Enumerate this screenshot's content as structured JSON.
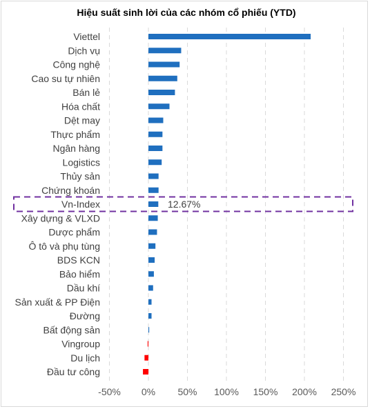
{
  "chart_data": {
    "type": "bar",
    "orientation": "horizontal",
    "title": "Hiệu suất sinh lời của các nhóm cổ phiếu (YTD)",
    "categories": [
      "Viettel",
      "Dịch vụ",
      "Công nghệ",
      "Cao su tự nhiên",
      "Bán lẻ",
      "Hóa chất",
      "Dệt may",
      "Thực phẩm",
      "Ngân hàng",
      "Logistics",
      "Thủy sản",
      "Chứng khoán",
      "Vn-Index",
      "Xây dựng & VLXD",
      "Dược phẩm",
      "Ô tô và phụ tùng",
      "BDS KCN",
      "Bảo hiểm",
      "Dầu khí",
      "Sản xuất & PP Điện",
      "Đường",
      "Bất động sản",
      "Vingroup",
      "Du lịch",
      "Đầu tư công"
    ],
    "values": [
      208,
      42,
      40,
      37,
      34,
      27,
      19,
      18,
      18,
      17,
      13,
      13,
      12.67,
      12,
      11,
      9,
      8,
      7,
      6,
      4,
      4,
      1,
      -1,
      -5,
      -7
    ],
    "x_ticks": [
      "-50%",
      "0%",
      "50%",
      "100%",
      "150%",
      "200%",
      "250%"
    ],
    "xlim": [
      -50,
      250
    ],
    "unit": "%",
    "grid": "vertical dashed",
    "highlight": {
      "category": "Vn-Index",
      "label": "12.67%",
      "style": "purple dashed box"
    },
    "colors": {
      "positive": "#1f6fbf",
      "negative": "#ff0000",
      "highlight_box": "#7030a0",
      "grid": "#d9d9d9"
    }
  }
}
